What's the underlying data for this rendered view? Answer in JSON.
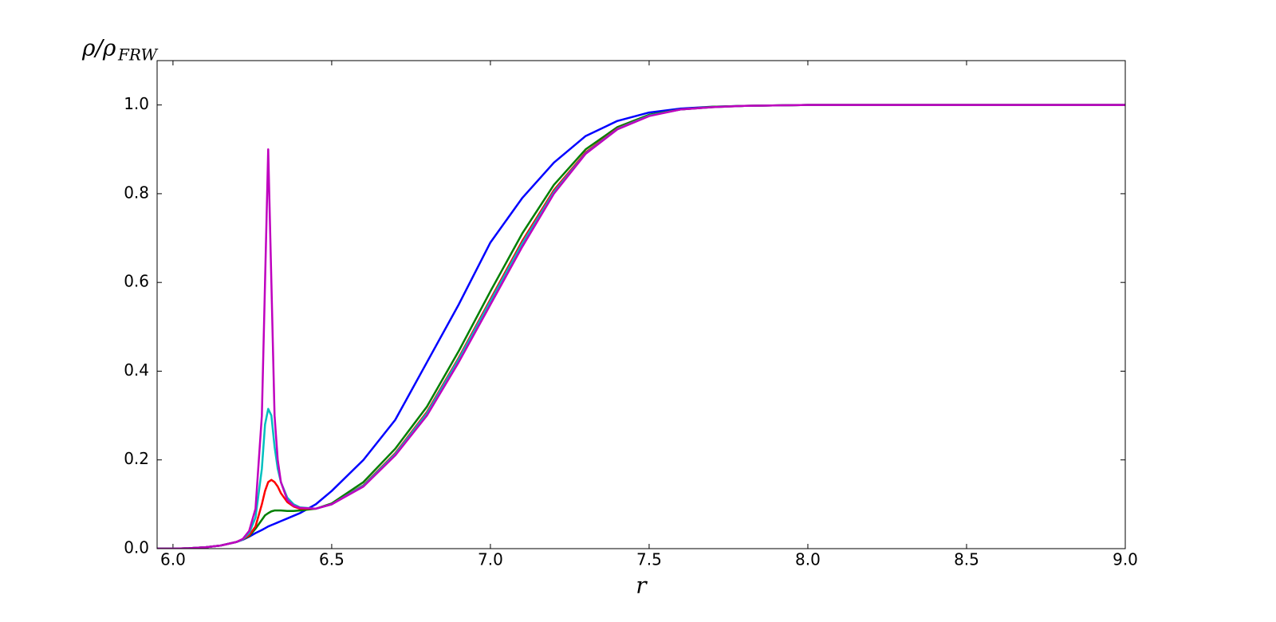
{
  "chart_data": {
    "type": "line",
    "xlabel": "r",
    "ylabel": {
      "main": "ρ/ρ",
      "sub": "FRW"
    },
    "xlim": [
      5.95,
      9.0
    ],
    "ylim": [
      0,
      1.1
    ],
    "xticks": [
      {
        "value": 6,
        "label": "6.0"
      },
      6.5,
      {
        "value": 7,
        "label": "7.0"
      },
      7.5,
      {
        "value": 8,
        "label": "8.0"
      },
      8.5,
      {
        "value": 9,
        "label": "9.0"
      }
    ],
    "yticks": [
      {
        "value": 0,
        "label": "0.0"
      },
      0.2,
      0.4,
      0.6,
      0.8,
      {
        "value": 1,
        "label": "1.0"
      }
    ],
    "x": [
      5.95,
      6.0,
      6.05,
      6.1,
      6.15,
      6.2,
      6.22,
      6.24,
      6.26,
      6.28,
      6.29,
      6.3,
      6.31,
      6.32,
      6.33,
      6.34,
      6.36,
      6.38,
      6.4,
      6.45,
      6.5,
      6.6,
      6.7,
      6.8,
      6.9,
      7.0,
      7.1,
      7.2,
      7.3,
      7.4,
      7.5,
      7.6,
      7.7,
      7.8,
      8.0,
      8.5,
      9.0
    ],
    "series": [
      {
        "color": "#0000ff",
        "values": [
          0,
          0,
          0.001,
          0.003,
          0.007,
          0.015,
          0.02,
          0.027,
          0.035,
          0.042,
          0.046,
          0.05,
          0.053,
          0.056,
          0.059,
          0.062,
          0.068,
          0.074,
          0.08,
          0.1,
          0.13,
          0.2,
          0.29,
          0.42,
          0.55,
          0.69,
          0.79,
          0.87,
          0.93,
          0.964,
          0.983,
          0.992,
          0.996,
          0.998,
          1,
          1,
          1
        ]
      },
      {
        "color": "#008000",
        "values": [
          0,
          0,
          0.001,
          0.003,
          0.007,
          0.015,
          0.021,
          0.028,
          0.045,
          0.065,
          0.075,
          0.08,
          0.084,
          0.086,
          0.086,
          0.086,
          0.085,
          0.085,
          0.086,
          0.09,
          0.102,
          0.15,
          0.225,
          0.32,
          0.445,
          0.58,
          0.71,
          0.82,
          0.9,
          0.95,
          0.978,
          0.99,
          0.996,
          0.998,
          1,
          1,
          1
        ]
      },
      {
        "color": "#ff0000",
        "values": [
          0,
          0,
          0.001,
          0.003,
          0.007,
          0.015,
          0.021,
          0.03,
          0.05,
          0.1,
          0.13,
          0.15,
          0.155,
          0.15,
          0.14,
          0.125,
          0.105,
          0.095,
          0.09,
          0.09,
          0.1,
          0.143,
          0.215,
          0.308,
          0.43,
          0.562,
          0.693,
          0.808,
          0.893,
          0.947,
          0.976,
          0.99,
          0.995,
          0.998,
          1,
          1,
          1
        ]
      },
      {
        "color": "#00bfbf",
        "values": [
          0,
          0,
          0.001,
          0.003,
          0.007,
          0.015,
          0.021,
          0.035,
          0.07,
          0.18,
          0.28,
          0.315,
          0.3,
          0.23,
          0.18,
          0.15,
          0.115,
          0.1,
          0.093,
          0.09,
          0.1,
          0.142,
          0.213,
          0.305,
          0.427,
          0.558,
          0.688,
          0.804,
          0.891,
          0.946,
          0.976,
          0.99,
          0.995,
          0.998,
          1,
          1,
          1
        ]
      },
      {
        "color": "#bf00bf",
        "values": [
          0,
          0,
          0.001,
          0.003,
          0.007,
          0.015,
          0.022,
          0.04,
          0.09,
          0.3,
          0.6,
          0.9,
          0.6,
          0.3,
          0.2,
          0.15,
          0.11,
          0.097,
          0.092,
          0.09,
          0.1,
          0.14,
          0.21,
          0.3,
          0.42,
          0.55,
          0.68,
          0.8,
          0.89,
          0.945,
          0.975,
          0.99,
          0.995,
          0.998,
          1,
          1,
          1
        ]
      }
    ]
  }
}
